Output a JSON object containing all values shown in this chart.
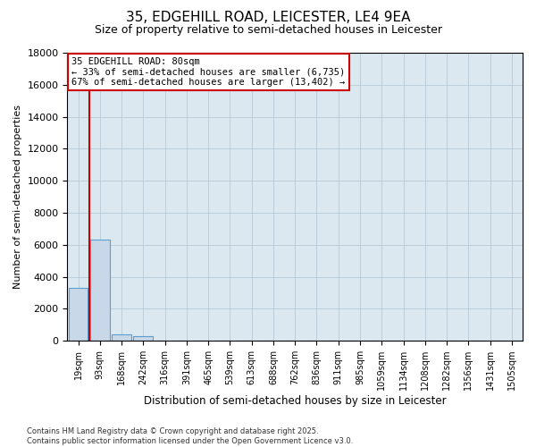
{
  "title_line1": "35, EDGEHILL ROAD, LEICESTER, LE4 9EA",
  "title_line2": "Size of property relative to semi-detached houses in Leicester",
  "xlabel": "Distribution of semi-detached houses by size in Leicester",
  "ylabel": "Number of semi-detached properties",
  "footnote": "Contains HM Land Registry data © Crown copyright and database right 2025.\nContains public sector information licensed under the Open Government Licence v3.0.",
  "bar_labels": [
    "19sqm",
    "93sqm",
    "168sqm",
    "242sqm",
    "316sqm",
    "391sqm",
    "465sqm",
    "539sqm",
    "613sqm",
    "688sqm",
    "762sqm",
    "836sqm",
    "911sqm",
    "985sqm",
    "1059sqm",
    "1134sqm",
    "1208sqm",
    "1282sqm",
    "1356sqm",
    "1431sqm",
    "1505sqm"
  ],
  "bar_values": [
    3300,
    6300,
    400,
    300,
    0,
    0,
    0,
    0,
    0,
    0,
    0,
    0,
    0,
    0,
    0,
    0,
    0,
    0,
    0,
    0,
    0
  ],
  "bar_color": "#c8d8e8",
  "bar_edgecolor": "#5a9fd4",
  "grid_color": "#b8cad8",
  "background_color": "#dce8f0",
  "property_label": "35 EDGEHILL ROAD: 80sqm",
  "pct_smaller": 33,
  "pct_larger": 67,
  "count_smaller": 6735,
  "count_larger": 13402,
  "vline_color": "#cc0000",
  "annotation_box_edgecolor": "#cc0000",
  "ylim": [
    0,
    18000
  ],
  "ytick_step": 2000,
  "vline_x": 1.0
}
